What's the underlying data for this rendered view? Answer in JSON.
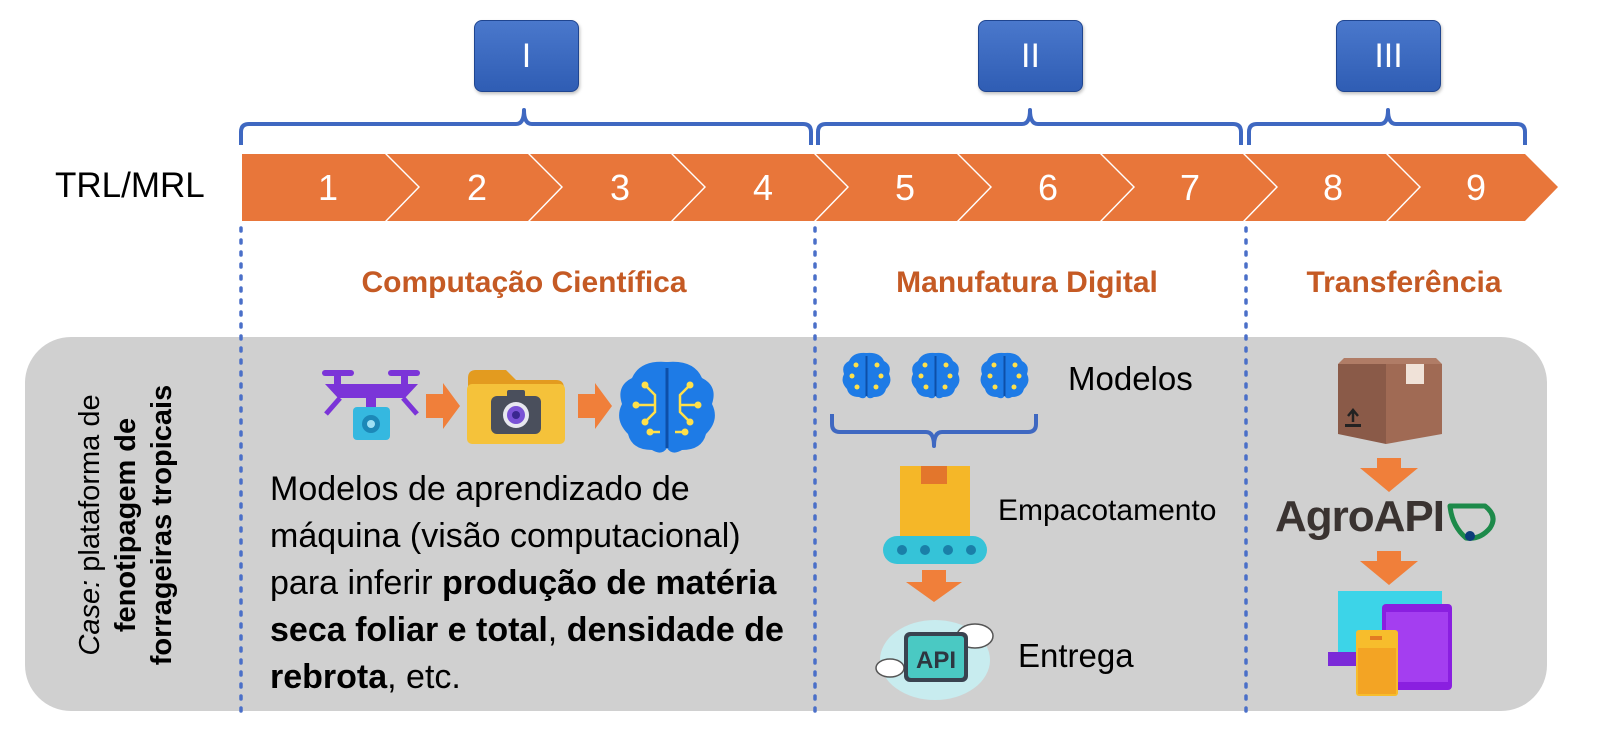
{
  "phases": [
    {
      "label": "I"
    },
    {
      "label": "II"
    },
    {
      "label": "III"
    }
  ],
  "trl_label": "TRL/MRL",
  "levels": [
    "1",
    "2",
    "3",
    "4",
    "5",
    "6",
    "7",
    "8",
    "9"
  ],
  "sections": {
    "computacao": "Computação Científica",
    "manufatura": "Manufatura Digital",
    "transferencia": "Transferência"
  },
  "case": {
    "prefix": "Case:",
    "line1": " plataforma de",
    "line2": "fenotipagem de",
    "line3": "forrageiras tropicais"
  },
  "description": {
    "part1": "Modelos de aprendizado de máquina (visão computacional) para inferir ",
    "bold1": "produção de matéria seca foliar e total",
    "part2": ", ",
    "bold2": "densidade de rebrota",
    "part3": ", etc."
  },
  "manufatura_labels": {
    "modelos": "Modelos",
    "empacotamento": "Empacotamento",
    "entrega": "Entrega",
    "api_badge": "API"
  },
  "agroapi_logo": "AgroAPI",
  "colors": {
    "arrow_orange": "#e8763a",
    "section_title": "#c55a24",
    "phase_blue": "#3563bd",
    "bracket_blue": "#3f68c1",
    "panel_gray": "#d0d0d0"
  },
  "icons": [
    "drone-icon",
    "camera-folder-icon",
    "brain-icon",
    "conveyor-box-icon",
    "api-cloud-icon",
    "package-icon",
    "devices-icon"
  ]
}
